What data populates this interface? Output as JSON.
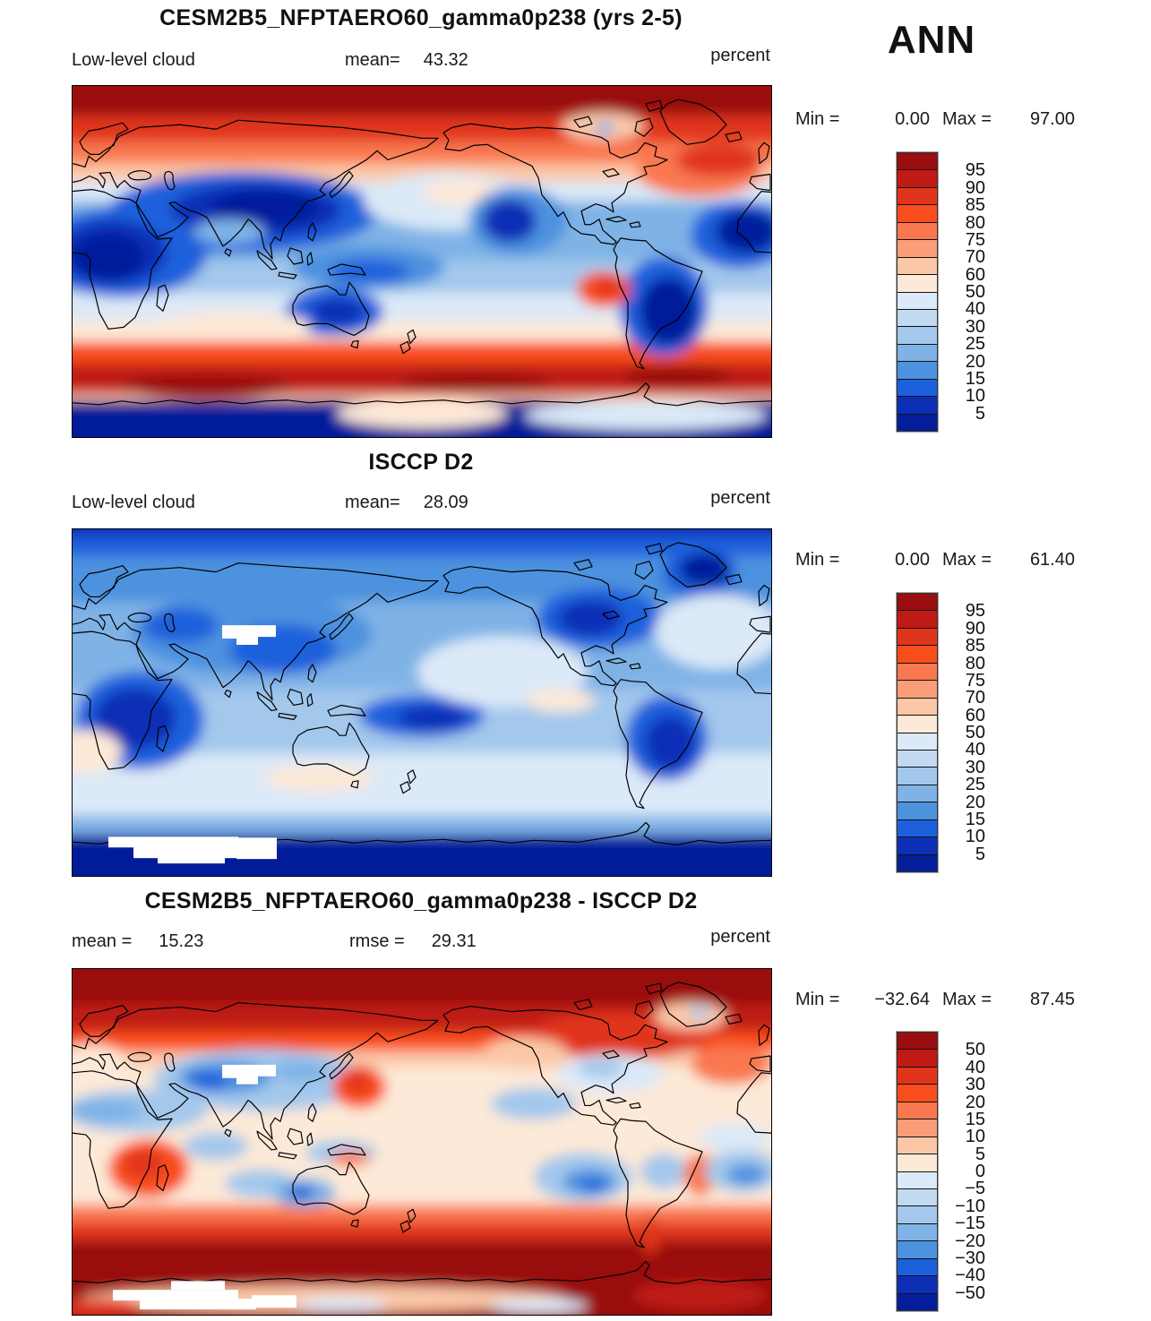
{
  "header": {
    "season_label": "ANN"
  },
  "panels": [
    {
      "title": "CESM2B5_NFPTAERO60_gamma0p238 (yrs 2-5)",
      "field_label": "Low-level cloud",
      "mean_label": "mean=",
      "mean_value": "43.32",
      "units": "percent",
      "min_label": "Min =",
      "min_value": "0.00",
      "max_label": "Max =",
      "max_value": "97.00",
      "colorbar_labels": [
        "95",
        "90",
        "85",
        "80",
        "75",
        "70",
        "60",
        "50",
        "40",
        "30",
        "25",
        "20",
        "15",
        "10",
        "5"
      ]
    },
    {
      "title": "ISCCP D2",
      "field_label": "Low-level cloud",
      "mean_label": "mean=",
      "mean_value": "28.09",
      "units": "percent",
      "min_label": "Min =",
      "min_value": "0.00",
      "max_label": "Max =",
      "max_value": "61.40",
      "colorbar_labels": [
        "95",
        "90",
        "85",
        "80",
        "75",
        "70",
        "60",
        "50",
        "40",
        "30",
        "25",
        "20",
        "15",
        "10",
        "5"
      ]
    },
    {
      "title": "CESM2B5_NFPTAERO60_gamma0p238 - ISCCP D2",
      "mean_label": "mean =",
      "mean_value": "15.23",
      "rmse_label": "rmse =",
      "rmse_value": "29.31",
      "units": "percent",
      "min_label": "Min =",
      "min_value": "−32.64",
      "max_label": "Max =",
      "max_value": "87.45",
      "colorbar_labels": [
        "50",
        "40",
        "30",
        "20",
        "15",
        "10",
        "5",
        "0",
        "−5",
        "−10",
        "−15",
        "−20",
        "−30",
        "−40",
        "−50"
      ]
    }
  ],
  "colorbar_colors": [
    "#9A0D10",
    "#C01A17",
    "#E0351C",
    "#F94D1D",
    "#F97850",
    "#FA9E79",
    "#FBC7A7",
    "#FDE9D7",
    "#DBE9F8",
    "#C2D9F2",
    "#A3C8EC",
    "#7FB3E6",
    "#4D92DF",
    "#1D60DC",
    "#0D2FB6",
    "#041E9B"
  ],
  "chart_data": {
    "type": "heatmap",
    "subtype": "global filled-contour latitude-longitude maps (equirectangular, lon 0-360E, lat 90N-90S)",
    "season": "ANN",
    "variable": "Low-level cloud",
    "units": "percent",
    "palette_top_to_bottom": [
      "#9A0D10",
      "#C01A17",
      "#E0351C",
      "#F94D1D",
      "#F97850",
      "#FA9E79",
      "#FBC7A7",
      "#FDE9D7",
      "#DBE9F8",
      "#C2D9F2",
      "#A3C8EC",
      "#7FB3E6",
      "#4D92DF",
      "#1D60DC",
      "#0D2FB6",
      "#041E9B"
    ],
    "panels": [
      {
        "title": "CESM2B5_NFPTAERO60_gamma0p238 (yrs 2-5)",
        "mean": 43.32,
        "min": 0.0,
        "max": 97.0,
        "contour_levels": [
          5,
          10,
          15,
          20,
          25,
          30,
          40,
          50,
          60,
          70,
          75,
          80,
          85,
          90,
          95
        ],
        "pattern": "dark red (>90%) polar/storm-track bands N of 60N and 40-65S; deep blue (<15%) over Eurasia, Sahara-Arabia, Australia, Amazon, subtropical E Atlantic; orange coastal stratus W of Peru; navy Antarctica"
      },
      {
        "title": "ISCCP D2",
        "mean": 28.09,
        "min": 0.0,
        "max": 61.4,
        "contour_levels": [
          5,
          10,
          15,
          20,
          25,
          30,
          40,
          50,
          60,
          70,
          75,
          80,
          85,
          90,
          95
        ],
        "pattern": "entirely blue shades (10-50%); darkest blue over Africa, Tibet rim, maritime continent, Amazon, Greenland; faint cream patches SE Atlantic and S Indian Ocean; white missing-data blocks over Tibet and W Antarctica; navy polar edges"
      },
      {
        "title": "CESM2B5_NFPTAERO60_gamma0p238 - ISCCP D2",
        "mean": 15.23,
        "rmse": 29.31,
        "min": -32.64,
        "max": 87.45,
        "contour_levels": [
          -50,
          -40,
          -30,
          -20,
          -15,
          -10,
          -5,
          0,
          5,
          10,
          15,
          20,
          30,
          40,
          50
        ],
        "pattern": "dark red (>50) Arctic band and 40-70S Southern Ocean band; blue negative pockets over central Asia, NE/SE Pacific, W Australia; pale cream tropics; white missing-data blocks over Tibet and W Antarctica"
      }
    ]
  }
}
